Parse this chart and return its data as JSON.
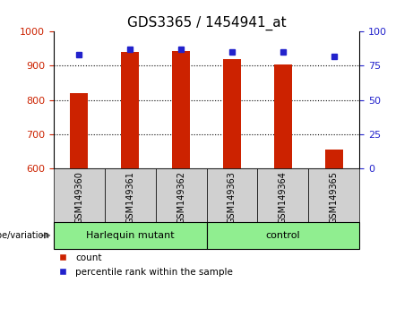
{
  "title": "GDS3365 / 1454941_at",
  "samples": [
    "GSM149360",
    "GSM149361",
    "GSM149362",
    "GSM149363",
    "GSM149364",
    "GSM149365"
  ],
  "counts": [
    820,
    940,
    942,
    920,
    905,
    655
  ],
  "percentile_ranks": [
    83,
    87,
    87,
    85,
    85,
    82
  ],
  "ylim_left": [
    600,
    1000
  ],
  "ylim_right": [
    0,
    100
  ],
  "yticks_left": [
    600,
    700,
    800,
    900,
    1000
  ],
  "yticks_right": [
    0,
    25,
    50,
    75,
    100
  ],
  "bar_color": "#cc2200",
  "dot_color": "#2222cc",
  "groups": [
    {
      "label": "Harlequin mutant",
      "indices": [
        0,
        1,
        2
      ],
      "color": "#90ee90"
    },
    {
      "label": "control",
      "indices": [
        3,
        4,
        5
      ],
      "color": "#90ee90"
    }
  ],
  "xlabel_group": "genotype/variation",
  "legend_count_label": "count",
  "legend_percentile_label": "percentile rank within the sample",
  "bar_width": 0.35,
  "title_fontsize": 11,
  "left_tick_color": "#cc2200",
  "right_tick_color": "#2222cc",
  "xticklabel_bg": "#d0d0d0",
  "plot_bg": "#ffffff"
}
